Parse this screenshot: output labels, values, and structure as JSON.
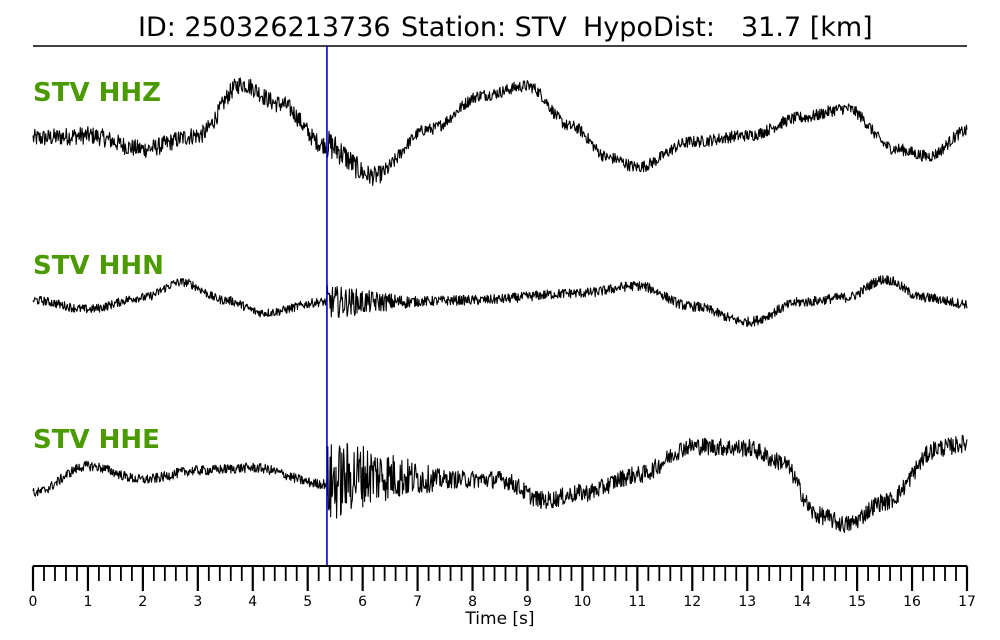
{
  "header": {
    "id_text": "ID: 250326213736",
    "station_text": "Station: STV",
    "hypodist_text": "HypoDist:",
    "hypodist_value": "31.7 [km]"
  },
  "colors": {
    "label": "#4a9a00",
    "trace": "#000000",
    "pick_line": "#0000cc"
  },
  "chart_data": {
    "type": "line",
    "xlabel": "Time [s]",
    "xlim": [
      0,
      17
    ],
    "major_ticks": [
      0,
      1,
      2,
      3,
      4,
      5,
      6,
      7,
      8,
      9,
      10,
      11,
      12,
      13,
      14,
      15,
      16,
      17
    ],
    "minor_tick_step": 0.2,
    "pick_time": 5.35,
    "grid": false,
    "series": [
      {
        "name": "STV HHZ",
        "waveform": {
          "points": [
            [
              0,
              0.02
            ],
            [
              1,
              0.05
            ],
            [
              2,
              -0.1
            ],
            [
              3,
              0.05
            ],
            [
              3.8,
              0.62
            ],
            [
              4.5,
              0.4
            ],
            [
              5.3,
              -0.05
            ],
            [
              6.2,
              -0.4
            ],
            [
              7.2,
              0.12
            ],
            [
              8.2,
              0.5
            ],
            [
              9.0,
              0.6
            ],
            [
              9.8,
              0.15
            ],
            [
              10.5,
              -0.2
            ],
            [
              11.0,
              -0.3
            ],
            [
              12.0,
              -0.02
            ],
            [
              13.0,
              0.05
            ],
            [
              14.0,
              0.25
            ],
            [
              14.8,
              0.35
            ],
            [
              15.7,
              -0.1
            ],
            [
              16.3,
              -0.18
            ],
            [
              17.0,
              0.1
            ]
          ],
          "noise_pre": 0.18,
          "noise_post": 0.3,
          "burst_start": 5.35,
          "burst_end": 6.8,
          "noise_late": 0.12
        }
      },
      {
        "name": "STV HHN",
        "waveform": {
          "points": [
            [
              0,
              0.02
            ],
            [
              1,
              -0.08
            ],
            [
              2,
              0.05
            ],
            [
              2.7,
              0.22
            ],
            [
              3.5,
              0.02
            ],
            [
              4.2,
              -0.12
            ],
            [
              5.3,
              0.0
            ],
            [
              6.5,
              0.0
            ],
            [
              8.0,
              0.02
            ],
            [
              10.0,
              0.1
            ],
            [
              11.0,
              0.18
            ],
            [
              12.0,
              -0.05
            ],
            [
              13.0,
              -0.22
            ],
            [
              14.0,
              0.0
            ],
            [
              14.8,
              0.05
            ],
            [
              15.5,
              0.25
            ],
            [
              16.2,
              0.05
            ],
            [
              17.0,
              -0.02
            ]
          ],
          "noise_pre": 0.09,
          "noise_post": 0.35,
          "burst_start": 5.35,
          "burst_end": 7.0,
          "noise_late": 0.1
        }
      },
      {
        "name": "STV HHE",
        "waveform": {
          "points": [
            [
              0,
              -0.2
            ],
            [
              1,
              0.1
            ],
            [
              2,
              -0.05
            ],
            [
              3,
              0.05
            ],
            [
              4,
              0.08
            ],
            [
              5.3,
              -0.1
            ],
            [
              6.0,
              0.0
            ],
            [
              7.5,
              -0.05
            ],
            [
              8.5,
              -0.05
            ],
            [
              9.3,
              -0.28
            ],
            [
              10.0,
              -0.2
            ],
            [
              11.0,
              0.0
            ],
            [
              12.0,
              0.32
            ],
            [
              13.0,
              0.3
            ],
            [
              13.6,
              0.15
            ],
            [
              14.3,
              -0.45
            ],
            [
              14.8,
              -0.55
            ],
            [
              15.5,
              -0.3
            ],
            [
              16.5,
              0.3
            ],
            [
              17.0,
              0.35
            ]
          ],
          "noise_pre": 0.1,
          "noise_post": 0.85,
          "burst_start": 5.35,
          "burst_end": 7.5,
          "noise_late": 0.18
        }
      }
    ]
  }
}
